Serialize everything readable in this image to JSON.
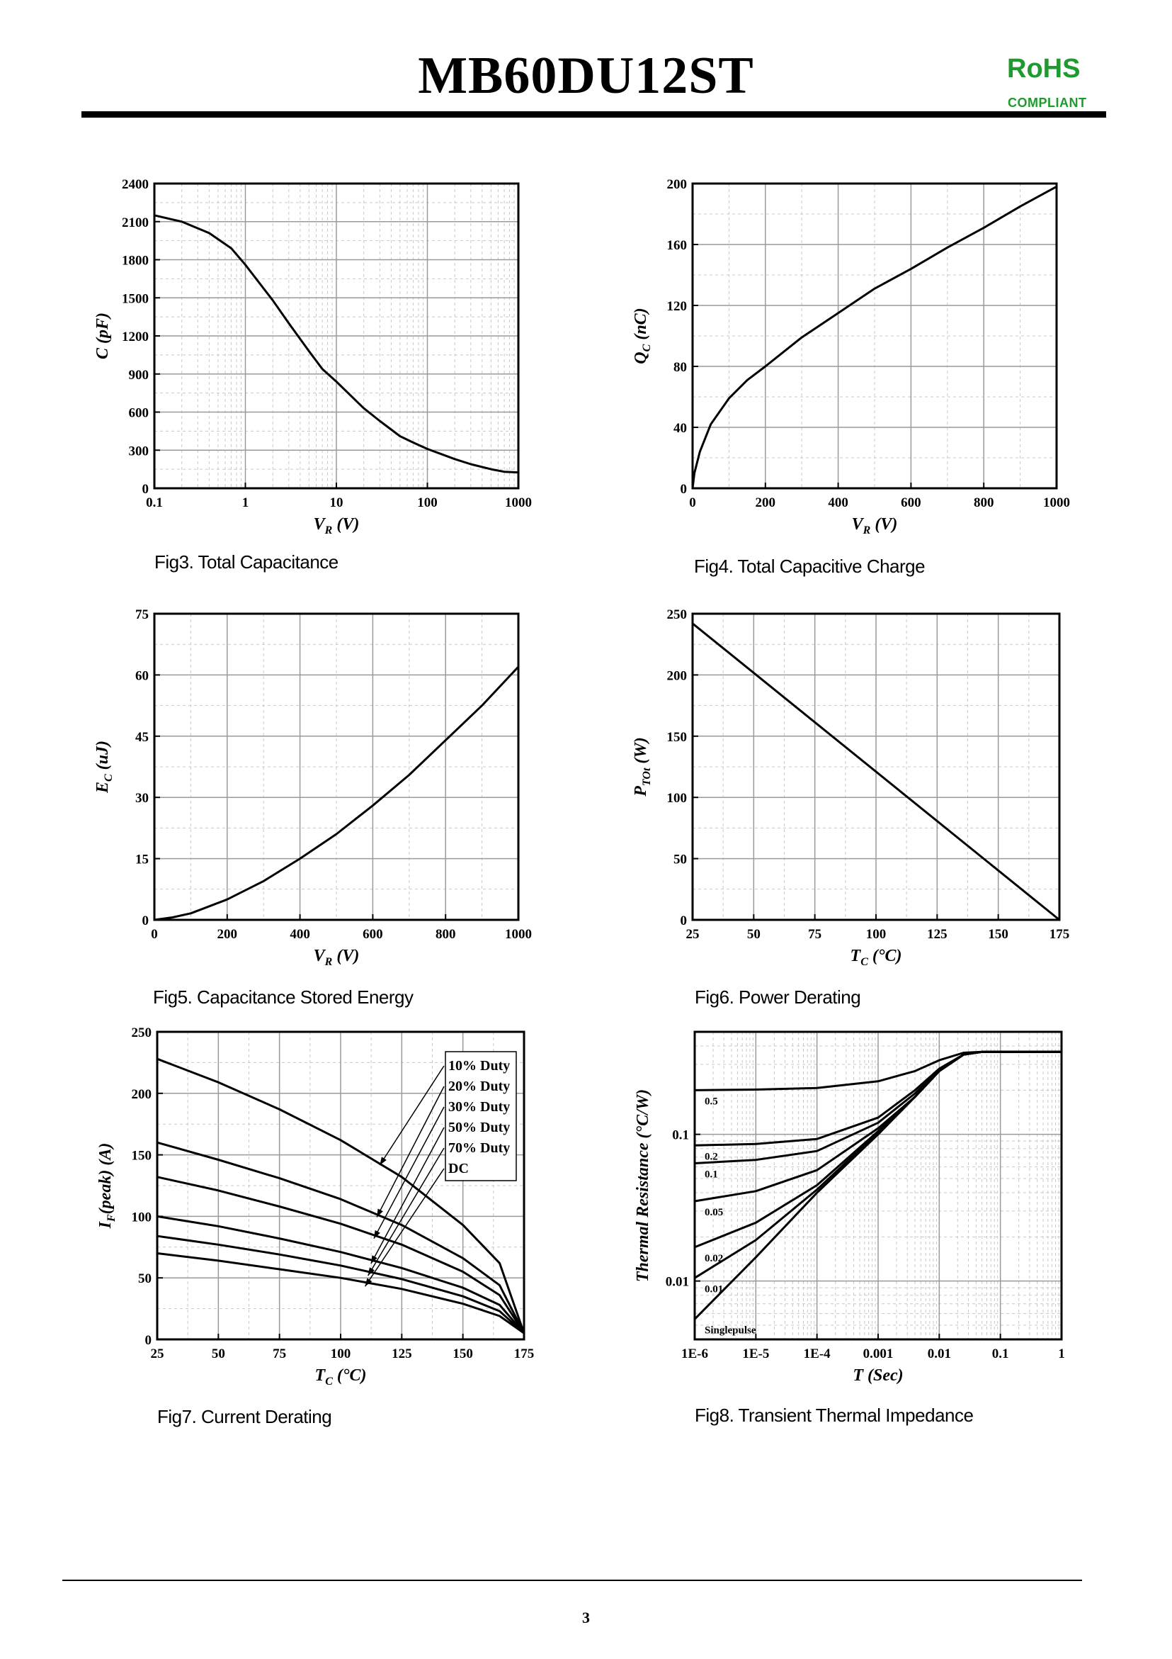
{
  "header": {
    "title": "MB60DU12ST",
    "rohs": "RoHS",
    "compliant": "COMPLIANT",
    "rohs_color": "#1d9b2e"
  },
  "footer": {
    "page_number": "3"
  },
  "charts_meta": {
    "fig3": "Fig3. Total Capacitance",
    "fig4": "Fig4. Total Capacitive Charge",
    "fig5": "Fig5. Capacitance Stored Energy",
    "fig6": "Fig6. Power Derating",
    "fig7": "Fig7. Current Derating",
    "fig8": "Fig8. Transient Thermal Impedance"
  },
  "chart_data": [
    {
      "id": "fig3",
      "type": "line",
      "title": "Fig3. Total Capacitance",
      "xlabel": "V",
      "xlabel_sub": "R",
      "xlabel_unit": " (V)",
      "ylabel": "C",
      "ylabel_sub": "",
      "ylabel_unit": " (pF)",
      "xscale": "log",
      "xlim": [
        0.1,
        1000
      ],
      "ylim": [
        0,
        2400
      ],
      "xticks": [
        0.1,
        1,
        10,
        100,
        1000
      ],
      "xtick_labels": [
        "0.1",
        "1",
        "10",
        "100",
        "1000"
      ],
      "yticks": [
        0,
        300,
        600,
        900,
        1200,
        1500,
        1800,
        2100,
        2400
      ],
      "ytick_labels": [
        "0",
        "300",
        "600",
        "900",
        "1200",
        "1500",
        "1800",
        "2100",
        "2400"
      ],
      "series": [
        {
          "name": "C",
          "x": [
            0.1,
            0.2,
            0.4,
            0.7,
            1,
            2,
            3,
            5,
            7,
            10,
            20,
            30,
            50,
            70,
            100,
            200,
            300,
            500,
            700,
            1000
          ],
          "y": [
            2150,
            2100,
            2010,
            1890,
            1760,
            1480,
            1300,
            1080,
            940,
            840,
            630,
            530,
            410,
            360,
            310,
            230,
            190,
            150,
            130,
            125
          ]
        }
      ]
    },
    {
      "id": "fig4",
      "type": "line",
      "title": "Fig4. Total Capacitive Charge",
      "xlabel": "V",
      "xlabel_sub": "R",
      "xlabel_unit": " (V)",
      "ylabel": "Q",
      "ylabel_sub": "C",
      "ylabel_unit": " (nC)",
      "xscale": "linear",
      "xlim": [
        0,
        1000
      ],
      "ylim": [
        0,
        200
      ],
      "xticks": [
        0,
        200,
        400,
        600,
        800,
        1000
      ],
      "xtick_labels": [
        "0",
        "200",
        "400",
        "600",
        "800",
        "1000"
      ],
      "yticks": [
        0,
        40,
        80,
        120,
        160,
        200
      ],
      "ytick_labels": [
        "0",
        "40",
        "80",
        "120",
        "160",
        "200"
      ],
      "series": [
        {
          "name": "Qc",
          "x": [
            0,
            5,
            20,
            50,
            100,
            150,
            200,
            300,
            400,
            500,
            600,
            700,
            800,
            900,
            1000
          ],
          "y": [
            0,
            10,
            24,
            42,
            59,
            71,
            80,
            99,
            115,
            131,
            144,
            158,
            171,
            185,
            198
          ]
        }
      ]
    },
    {
      "id": "fig5",
      "type": "line",
      "title": "Fig5. Capacitance Stored Energy",
      "xlabel": "V",
      "xlabel_sub": "R",
      "xlabel_unit": " (V)",
      "ylabel": "E",
      "ylabel_sub": "C",
      "ylabel_unit": " (uJ)",
      "xscale": "linear",
      "xlim": [
        0,
        1000
      ],
      "ylim": [
        0,
        75
      ],
      "xticks": [
        0,
        200,
        400,
        600,
        800,
        1000
      ],
      "xtick_labels": [
        "0",
        "200",
        "400",
        "600",
        "800",
        "1000"
      ],
      "yticks": [
        0,
        15,
        30,
        45,
        60,
        75
      ],
      "ytick_labels": [
        "0",
        "15",
        "30",
        "45",
        "60",
        "75"
      ],
      "series": [
        {
          "name": "Ec",
          "x": [
            0,
            50,
            100,
            200,
            300,
            400,
            500,
            600,
            700,
            800,
            900,
            1000
          ],
          "y": [
            0,
            0.6,
            1.6,
            5,
            9.5,
            15,
            21,
            28,
            35.5,
            44,
            52.5,
            62
          ]
        }
      ]
    },
    {
      "id": "fig6",
      "type": "line",
      "title": "Fig6. Power Derating",
      "xlabel": "T",
      "xlabel_sub": "C",
      "xlabel_unit": " (°C)",
      "ylabel": "P",
      "ylabel_sub": "TOt",
      "ylabel_unit": " (W)",
      "xscale": "linear",
      "xlim": [
        25,
        175
      ],
      "ylim": [
        0,
        250
      ],
      "xticks": [
        25,
        50,
        75,
        100,
        125,
        150,
        175
      ],
      "xtick_labels": [
        "25",
        "50",
        "75",
        "100",
        "125",
        "150",
        "175"
      ],
      "yticks": [
        0,
        50,
        100,
        150,
        200,
        250
      ],
      "ytick_labels": [
        "0",
        "50",
        "100",
        "150",
        "200",
        "250"
      ],
      "series": [
        {
          "name": "Ptot",
          "x": [
            25,
            175
          ],
          "y": [
            242,
            0
          ]
        }
      ]
    },
    {
      "id": "fig7",
      "type": "line",
      "title": "Fig7. Current Derating",
      "xlabel": "T",
      "xlabel_sub": "C",
      "xlabel_unit": " (°C)",
      "ylabel": "I",
      "ylabel_sub": "F",
      "ylabel_unit": "(peak) (A)",
      "xscale": "linear",
      "xlim": [
        25,
        175
      ],
      "ylim": [
        0,
        250
      ],
      "xticks": [
        25,
        50,
        75,
        100,
        125,
        150,
        175
      ],
      "xtick_labels": [
        "25",
        "50",
        "75",
        "100",
        "125",
        "150",
        "175"
      ],
      "yticks": [
        0,
        50,
        100,
        150,
        200,
        250
      ],
      "ytick_labels": [
        "0",
        "50",
        "100",
        "150",
        "200",
        "250"
      ],
      "legend": [
        "10% Duty",
        "20% Duty",
        "30% Duty",
        "50% Duty",
        "70% Duty",
        "DC"
      ],
      "series": [
        {
          "name": "10% Duty",
          "x": [
            25,
            50,
            75,
            100,
            125,
            150,
            165,
            175
          ],
          "y": [
            228,
            209,
            187,
            162,
            132,
            93,
            62,
            5
          ]
        },
        {
          "name": "20% Duty",
          "x": [
            25,
            50,
            75,
            100,
            125,
            150,
            165,
            175
          ],
          "y": [
            160,
            146,
            131,
            114,
            93,
            66,
            44,
            5
          ]
        },
        {
          "name": "30% Duty",
          "x": [
            25,
            50,
            75,
            100,
            125,
            150,
            165,
            175
          ],
          "y": [
            132,
            121,
            108,
            94,
            77,
            55,
            36,
            5
          ]
        },
        {
          "name": "50% Duty",
          "x": [
            25,
            50,
            75,
            100,
            125,
            150,
            165,
            175
          ],
          "y": [
            100,
            92,
            82,
            71,
            58,
            42,
            28,
            5
          ]
        },
        {
          "name": "70% Duty",
          "x": [
            25,
            50,
            75,
            100,
            125,
            150,
            165,
            175
          ],
          "y": [
            84,
            77,
            69,
            60,
            49,
            35,
            23,
            5
          ]
        },
        {
          "name": "DC",
          "x": [
            25,
            50,
            75,
            100,
            125,
            150,
            165,
            175
          ],
          "y": [
            70,
            64,
            57,
            50,
            41,
            29,
            19,
            5
          ]
        }
      ]
    },
    {
      "id": "fig8",
      "type": "line",
      "title": "Fig8. Transient Thermal Impedance",
      "xlabel": "T",
      "xlabel_sub": "",
      "xlabel_unit": " (Sec)",
      "ylabel": "Thermal Resistance",
      "ylabel_sub": "",
      "ylabel_unit": " (°C/W)",
      "xscale": "log",
      "yscale": "log",
      "xlim": [
        1e-06,
        1
      ],
      "ylim": [
        0.004,
        0.5
      ],
      "xticks": [
        1e-06,
        1e-05,
        0.0001,
        0.001,
        0.01,
        0.1,
        1
      ],
      "xtick_labels": [
        "1E-6",
        "1E-5",
        "1E-4",
        "0.001",
        "0.01",
        "0.1",
        "1"
      ],
      "yticks": [
        0.01,
        0.1
      ],
      "ytick_labels": [
        "0.01",
        "0.1"
      ],
      "series": [
        {
          "name": "0.5",
          "x": [
            1e-06,
            1e-05,
            0.0001,
            0.001,
            0.004,
            0.01,
            0.025,
            0.05,
            0.1,
            1
          ],
          "y": [
            0.2,
            0.202,
            0.207,
            0.23,
            0.27,
            0.32,
            0.36,
            0.365,
            0.365,
            0.365
          ]
        },
        {
          "name": "0.2",
          "x": [
            1e-06,
            1e-05,
            0.0001,
            0.001,
            0.004,
            0.01,
            0.025,
            0.05,
            0.1,
            1
          ],
          "y": [
            0.084,
            0.086,
            0.093,
            0.13,
            0.2,
            0.28,
            0.35,
            0.365,
            0.365,
            0.365
          ]
        },
        {
          "name": "0.1",
          "x": [
            1e-06,
            1e-05,
            0.0001,
            0.001,
            0.004,
            0.01,
            0.025,
            0.05,
            0.1,
            1
          ],
          "y": [
            0.0635,
            0.067,
            0.077,
            0.12,
            0.19,
            0.275,
            0.35,
            0.365,
            0.365,
            0.365
          ]
        },
        {
          "name": "0.05",
          "x": [
            1e-06,
            1e-05,
            0.0001,
            0.001,
            0.004,
            0.01,
            0.025,
            0.05,
            0.1,
            1
          ],
          "y": [
            0.035,
            0.041,
            0.057,
            0.11,
            0.18,
            0.27,
            0.35,
            0.365,
            0.365,
            0.365
          ]
        },
        {
          "name": "0.02",
          "x": [
            1e-06,
            1e-05,
            0.0001,
            0.001,
            0.004,
            0.01,
            0.025,
            0.05,
            0.1,
            1
          ],
          "y": [
            0.017,
            0.025,
            0.045,
            0.105,
            0.18,
            0.27,
            0.35,
            0.365,
            0.365,
            0.365
          ]
        },
        {
          "name": "0.01",
          "x": [
            1e-06,
            1e-05,
            0.0001,
            0.001,
            0.004,
            0.01,
            0.025,
            0.05,
            0.1,
            1
          ],
          "y": [
            0.0105,
            0.019,
            0.042,
            0.103,
            0.18,
            0.27,
            0.35,
            0.365,
            0.365,
            0.365
          ]
        },
        {
          "name": "Singlepulse",
          "x": [
            1e-06,
            1e-05,
            0.0001,
            0.001,
            0.004,
            0.01,
            0.025,
            0.05,
            0.1,
            1
          ],
          "y": [
            0.0055,
            0.0145,
            0.04,
            0.1,
            0.18,
            0.27,
            0.35,
            0.365,
            0.365,
            0.365
          ]
        }
      ]
    }
  ]
}
